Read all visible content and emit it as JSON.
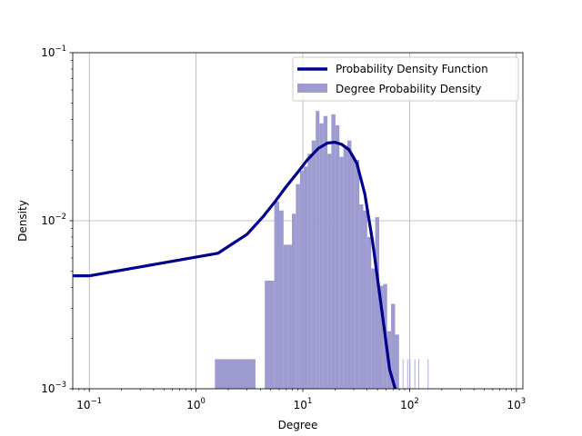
{
  "chart_data": {
    "type": "bar",
    "title": "",
    "xlabel": "Degree",
    "ylabel": "Density",
    "x_scale": "log",
    "y_scale": "log",
    "xlim": [
      0.07,
      1150
    ],
    "ylim": [
      0.001,
      0.1
    ],
    "grid": true,
    "legend_position": "top-right",
    "x_ticks": [
      {
        "value": 0.1,
        "base": "10",
        "exp": "−1"
      },
      {
        "value": 1,
        "base": "10",
        "exp": "0"
      },
      {
        "value": 10,
        "base": "10",
        "exp": "1"
      },
      {
        "value": 100,
        "base": "10",
        "exp": "2"
      },
      {
        "value": 1000,
        "base": "10",
        "exp": "3"
      }
    ],
    "y_ticks": [
      {
        "value": 0.001,
        "base": "10",
        "exp": "−3"
      },
      {
        "value": 0.01,
        "base": "10",
        "exp": "−2"
      },
      {
        "value": 0.1,
        "base": "10",
        "exp": "−1"
      }
    ],
    "series": [
      {
        "name": "Degree Probability Density",
        "kind": "histogram",
        "color": "#9d9bd0",
        "bins": [
          {
            "x0": 1.5,
            "x1": 3.6,
            "y": 0.0015
          },
          {
            "x0": 4.4,
            "x1": 5.4,
            "y": 0.0044
          },
          {
            "x0": 5.4,
            "x1": 6.0,
            "y": 0.013
          },
          {
            "x0": 6.0,
            "x1": 6.6,
            "y": 0.0115
          },
          {
            "x0": 6.6,
            "x1": 7.2,
            "y": 0.0072
          },
          {
            "x0": 7.2,
            "x1": 7.9,
            "y": 0.0072
          },
          {
            "x0": 7.9,
            "x1": 8.6,
            "y": 0.011
          },
          {
            "x0": 8.6,
            "x1": 9.4,
            "y": 0.0165
          },
          {
            "x0": 9.4,
            "x1": 10.2,
            "y": 0.0198
          },
          {
            "x0": 10.2,
            "x1": 11.1,
            "y": 0.021
          },
          {
            "x0": 11.1,
            "x1": 12.1,
            "y": 0.025
          },
          {
            "x0": 12.1,
            "x1": 13.2,
            "y": 0.03
          },
          {
            "x0": 13.2,
            "x1": 14.3,
            "y": 0.045
          },
          {
            "x0": 14.3,
            "x1": 15.6,
            "y": 0.038
          },
          {
            "x0": 15.6,
            "x1": 17.0,
            "y": 0.042
          },
          {
            "x0": 17.0,
            "x1": 18.5,
            "y": 0.025
          },
          {
            "x0": 18.5,
            "x1": 20.2,
            "y": 0.043
          },
          {
            "x0": 20.2,
            "x1": 22.0,
            "y": 0.037
          },
          {
            "x0": 22.0,
            "x1": 24.0,
            "y": 0.024
          },
          {
            "x0": 24.0,
            "x1": 26.1,
            "y": 0.028
          },
          {
            "x0": 26.1,
            "x1": 28.5,
            "y": 0.03
          },
          {
            "x0": 28.5,
            "x1": 31.0,
            "y": 0.024
          },
          {
            "x0": 31.0,
            "x1": 33.8,
            "y": 0.023
          },
          {
            "x0": 33.8,
            "x1": 36.8,
            "y": 0.0125
          },
          {
            "x0": 36.8,
            "x1": 40.1,
            "y": 0.0115
          },
          {
            "x0": 40.1,
            "x1": 43.7,
            "y": 0.008
          },
          {
            "x0": 43.7,
            "x1": 47.6,
            "y": 0.0052
          },
          {
            "x0": 47.6,
            "x1": 51.9,
            "y": 0.0105
          },
          {
            "x0": 51.9,
            "x1": 56.5,
            "y": 0.0041
          },
          {
            "x0": 56.5,
            "x1": 61.6,
            "y": 0.0042
          },
          {
            "x0": 61.6,
            "x1": 67.1,
            "y": 0.0022
          },
          {
            "x0": 67.1,
            "x1": 73.1,
            "y": 0.0032
          },
          {
            "x0": 73.1,
            "x1": 79.6,
            "y": 0.0021
          },
          {
            "x0": 86.0,
            "x1": 87.0,
            "y": 0.0015
          },
          {
            "x0": 95.0,
            "x1": 96.0,
            "y": 0.0015
          },
          {
            "x0": 100.0,
            "x1": 101.0,
            "y": 0.0015
          },
          {
            "x0": 111.0,
            "x1": 112.0,
            "y": 0.0015
          },
          {
            "x0": 121.0,
            "x1": 122.0,
            "y": 0.0015
          },
          {
            "x0": 148.0,
            "x1": 150.0,
            "y": 0.0015
          }
        ]
      },
      {
        "name": "Probability Density Function",
        "kind": "line",
        "color": "#00008b",
        "x": [
          0.07,
          0.1,
          1.6,
          3.0,
          4.2,
          5.5,
          7.0,
          9.0,
          11.0,
          14.0,
          17.0,
          20.0,
          23.0,
          27.0,
          32.0,
          38.0,
          45.0,
          55.0,
          65.0,
          75.0
        ],
        "y": [
          0.0047,
          0.0047,
          0.0064,
          0.0083,
          0.0105,
          0.013,
          0.016,
          0.0195,
          0.023,
          0.027,
          0.029,
          0.0293,
          0.0285,
          0.0265,
          0.022,
          0.0145,
          0.0075,
          0.0029,
          0.0013,
          0.00095
        ]
      }
    ]
  }
}
